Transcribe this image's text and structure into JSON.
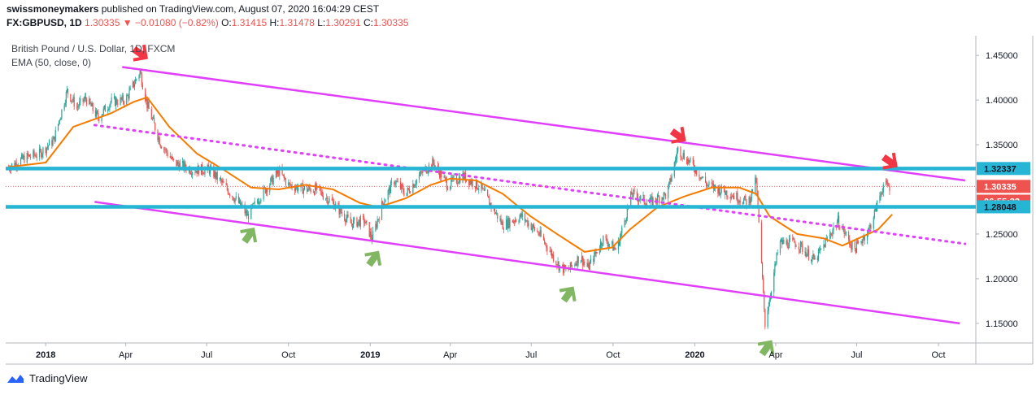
{
  "header": {
    "publisher": "swissmoneymakers",
    "published_text": "published on TradingView.com, August 07, 2020 16:04:29 CEST",
    "symbol": "FX:GBPUSD, 1D",
    "last": "1.30335",
    "change": "−0.01080 (−0.82%)",
    "o_label": "O:",
    "o_value": "1.31415",
    "h_label": "H:",
    "h_value": "1.31478",
    "l_label": "L:",
    "l_value": "1.30291",
    "c_label": "C:",
    "c_value": "1.30335"
  },
  "legend": {
    "title": "British Pound / U.S. Dollar, 1D, FXCM",
    "indicator": "EMA (50, close, 0)"
  },
  "footer": {
    "brand": "TradingView"
  },
  "colors": {
    "up": "#26a69a",
    "down": "#ef5350",
    "ema": "#f57c00",
    "channel": "#e040fb",
    "level": "#26b5d4",
    "arrow_down": "#f23645",
    "arrow_up": "#81b662"
  },
  "chart_data": {
    "type": "candlestick",
    "symbol": "GBPUSD",
    "x_ticks": [
      "2018",
      "Apr",
      "Jul",
      "Oct",
      "2019",
      "Apr",
      "Jul",
      "Oct",
      "2020",
      "Apr",
      "Jul",
      "Oct"
    ],
    "y_ticks": [
      "1.45000",
      "1.40000",
      "1.35000",
      "1.30000",
      "1.25000",
      "1.20000",
      "1.15000"
    ],
    "ylim": [
      1.128,
      1.472
    ],
    "price_tags": [
      {
        "text": "1.32337",
        "value": 1.32337,
        "style": "level"
      },
      {
        "text": "1.30335",
        "value": 1.30335,
        "style": "last"
      },
      {
        "text": "06:55:32",
        "value": 1.2868,
        "style": "timer"
      },
      {
        "text": "1.28048",
        "value": 1.28048,
        "style": "level"
      }
    ],
    "close_path": [
      [
        "2017-11-20",
        1.325
      ],
      [
        "2017-12-10",
        1.336
      ],
      [
        "2017-12-25",
        1.34
      ],
      [
        "2018-01-10",
        1.355
      ],
      [
        "2018-01-25",
        1.41
      ],
      [
        "2018-02-05",
        1.392
      ],
      [
        "2018-02-15",
        1.402
      ],
      [
        "2018-03-01",
        1.38
      ],
      [
        "2018-03-15",
        1.398
      ],
      [
        "2018-04-01",
        1.4
      ],
      [
        "2018-04-17",
        1.432
      ],
      [
        "2018-04-25",
        1.395
      ],
      [
        "2018-05-10",
        1.352
      ],
      [
        "2018-05-25",
        1.33
      ],
      [
        "2018-06-15",
        1.322
      ],
      [
        "2018-07-05",
        1.322
      ],
      [
        "2018-07-20",
        1.305
      ],
      [
        "2018-08-10",
        1.28
      ],
      [
        "2018-08-16",
        1.27
      ],
      [
        "2018-09-01",
        1.295
      ],
      [
        "2018-09-20",
        1.32
      ],
      [
        "2018-10-01",
        1.305
      ],
      [
        "2018-10-20",
        1.3
      ],
      [
        "2018-11-01",
        1.3
      ],
      [
        "2018-11-20",
        1.285
      ],
      [
        "2018-12-10",
        1.262
      ],
      [
        "2018-12-25",
        1.265
      ],
      [
        "2019-01-03",
        1.245
      ],
      [
        "2019-01-15",
        1.285
      ],
      [
        "2019-01-28",
        1.31
      ],
      [
        "2019-02-10",
        1.295
      ],
      [
        "2019-03-01",
        1.32
      ],
      [
        "2019-03-13",
        1.33
      ],
      [
        "2019-03-29",
        1.305
      ],
      [
        "2019-04-15",
        1.315
      ],
      [
        "2019-05-05",
        1.302
      ],
      [
        "2019-05-30",
        1.26
      ],
      [
        "2019-06-20",
        1.27
      ],
      [
        "2019-07-10",
        1.25
      ],
      [
        "2019-08-01",
        1.215
      ],
      [
        "2019-08-10",
        1.208
      ],
      [
        "2019-08-25",
        1.225
      ],
      [
        "2019-09-03",
        1.212
      ],
      [
        "2019-09-20",
        1.245
      ],
      [
        "2019-10-05",
        1.232
      ],
      [
        "2019-10-22",
        1.295
      ],
      [
        "2019-11-10",
        1.285
      ],
      [
        "2019-12-01",
        1.295
      ],
      [
        "2019-12-13",
        1.345
      ],
      [
        "2019-12-31",
        1.325
      ],
      [
        "2020-01-15",
        1.305
      ],
      [
        "2020-02-10",
        1.295
      ],
      [
        "2020-03-01",
        1.285
      ],
      [
        "2020-03-10",
        1.31
      ],
      [
        "2020-03-20",
        1.15
      ],
      [
        "2020-04-05",
        1.24
      ],
      [
        "2020-04-25",
        1.24
      ],
      [
        "2020-05-15",
        1.22
      ],
      [
        "2020-06-10",
        1.265
      ],
      [
        "2020-06-28",
        1.232
      ],
      [
        "2020-07-15",
        1.255
      ],
      [
        "2020-07-31",
        1.305
      ],
      [
        "2020-08-07",
        1.303
      ]
    ],
    "ema_50": [
      [
        "2017-11-20",
        1.325
      ],
      [
        "2018-01-01",
        1.33
      ],
      [
        "2018-02-01",
        1.37
      ],
      [
        "2018-03-15",
        1.385
      ],
      [
        "2018-04-10",
        1.398
      ],
      [
        "2018-04-25",
        1.403
      ],
      [
        "2018-05-20",
        1.37
      ],
      [
        "2018-06-20",
        1.34
      ],
      [
        "2018-07-20",
        1.322
      ],
      [
        "2018-08-20",
        1.302
      ],
      [
        "2018-09-20",
        1.3
      ],
      [
        "2018-10-20",
        1.305
      ],
      [
        "2018-11-20",
        1.3
      ],
      [
        "2018-12-20",
        1.285
      ],
      [
        "2019-01-10",
        1.28
      ],
      [
        "2019-02-10",
        1.29
      ],
      [
        "2019-03-10",
        1.305
      ],
      [
        "2019-04-01",
        1.312
      ],
      [
        "2019-04-30",
        1.31
      ],
      [
        "2019-05-30",
        1.295
      ],
      [
        "2019-06-30",
        1.27
      ],
      [
        "2019-07-30",
        1.25
      ],
      [
        "2019-08-30",
        1.23
      ],
      [
        "2019-09-30",
        1.235
      ],
      [
        "2019-10-20",
        1.255
      ],
      [
        "2019-11-20",
        1.28
      ],
      [
        "2019-12-20",
        1.292
      ],
      [
        "2020-01-20",
        1.302
      ],
      [
        "2020-02-20",
        1.302
      ],
      [
        "2020-03-10",
        1.295
      ],
      [
        "2020-03-25",
        1.27
      ],
      [
        "2020-04-25",
        1.25
      ],
      [
        "2020-05-25",
        1.245
      ],
      [
        "2020-06-15",
        1.237
      ],
      [
        "2020-07-05",
        1.246
      ],
      [
        "2020-07-25",
        1.255
      ],
      [
        "2020-08-10",
        1.272
      ]
    ],
    "lines": [
      {
        "name": "channel-upper",
        "from": [
          "2018-03-28",
          1.437
        ],
        "to": [
          "2020-10-31",
          1.31
        ],
        "style": "solid"
      },
      {
        "name": "channel-lower",
        "from": [
          "2018-02-25",
          1.286
        ],
        "to": [
          "2020-10-25",
          1.15
        ],
        "style": "solid"
      },
      {
        "name": "midline",
        "from": [
          "2018-02-25",
          1.372
        ],
        "to": [
          "2020-10-31",
          1.239
        ],
        "style": "dotted"
      },
      {
        "name": "resistance",
        "value": 1.32337,
        "style": "thick"
      },
      {
        "name": "support",
        "value": 1.28048,
        "style": "thick"
      }
    ],
    "arrows": [
      {
        "dir": "down",
        "at": [
          "2018-04-17",
          1.45
        ]
      },
      {
        "dir": "down",
        "at": [
          "2019-12-13",
          1.358
        ]
      },
      {
        "dir": "down",
        "at": [
          "2020-08-07",
          1.329
        ]
      },
      {
        "dir": "up",
        "at": [
          "2018-08-16",
          1.254
        ]
      },
      {
        "dir": "up",
        "at": [
          "2019-01-03",
          1.228
        ]
      },
      {
        "dir": "up",
        "at": [
          "2019-08-10",
          1.188
        ]
      },
      {
        "dir": "up",
        "at": [
          "2020-03-20",
          1.128
        ]
      }
    ]
  }
}
